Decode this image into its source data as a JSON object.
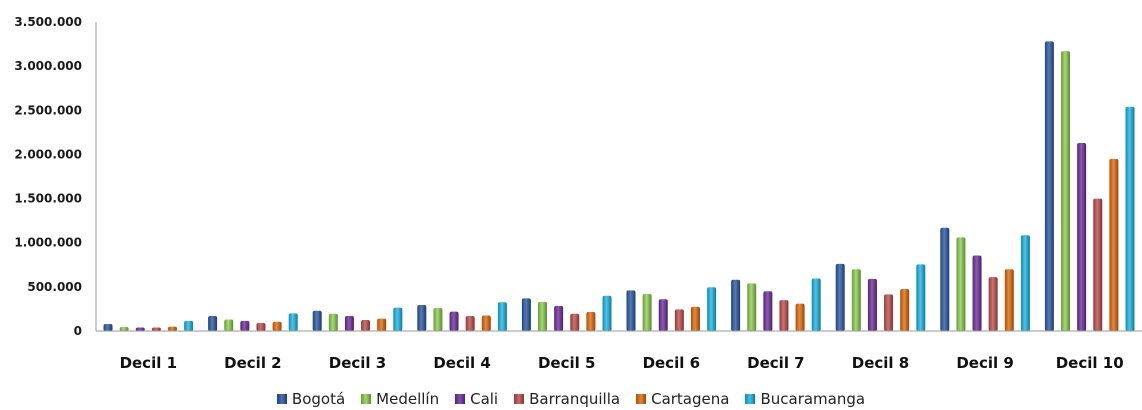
{
  "chart_data": {
    "type": "bar",
    "categories": [
      "Decil 1",
      "Decil 2",
      "Decil 3",
      "Decil 4",
      "Decil 5",
      "Decil 6",
      "Decil 7",
      "Decil 8",
      "Decil 9",
      "Decil 10"
    ],
    "series": [
      {
        "name": "Bogotá",
        "color": "#2a5aa6",
        "values": [
          80000,
          170000,
          230000,
          295000,
          370000,
          460000,
          580000,
          760000,
          1170000,
          3280000
        ]
      },
      {
        "name": "Medellín",
        "color": "#8fd14f",
        "values": [
          45000,
          130000,
          195000,
          260000,
          330000,
          420000,
          540000,
          700000,
          1060000,
          3170000
        ]
      },
      {
        "name": "Cali",
        "color": "#7030a0",
        "values": [
          40000,
          115000,
          170000,
          220000,
          285000,
          360000,
          450000,
          590000,
          855000,
          2130000
        ]
      },
      {
        "name": "Barranquilla",
        "color": "#c0504d",
        "values": [
          40000,
          90000,
          125000,
          170000,
          195000,
          245000,
          350000,
          415000,
          610000,
          1500000
        ]
      },
      {
        "name": "Cartagena",
        "color": "#e46c0a",
        "values": [
          50000,
          105000,
          140000,
          175000,
          215000,
          275000,
          310000,
          475000,
          700000,
          1950000
        ]
      },
      {
        "name": "Bucaramanga",
        "color": "#1cb8e8",
        "values": [
          115000,
          200000,
          265000,
          325000,
          400000,
          495000,
          595000,
          755000,
          1085000,
          2540000
        ]
      }
    ],
    "yticks": [
      "0",
      "500.000",
      "1.000.000",
      "1.500.000",
      "2.000.000",
      "2.500.000",
      "3.000.000",
      "3.500.000"
    ],
    "ylim": [
      0,
      3500000
    ],
    "grid": false,
    "legend_position": "bottom"
  }
}
